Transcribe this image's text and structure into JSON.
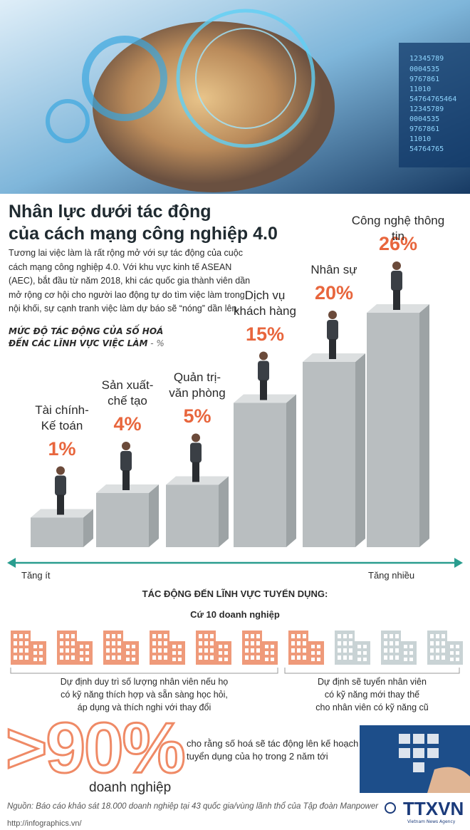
{
  "header": {
    "title": "Nhân lực dưới tác động\ncủa cách mạng công nghiệp 4.0",
    "intro": "Tương lai việc làm là rất rộng mở với sự tác động của cuộc cách mạng công nghiệp 4.0. Với khu vực kinh tế ASEAN (AEC), bắt đầu từ năm 2018, khi các quốc gia thành viên dần mở rộng cơ hội cho người lao động tự do tìm việc làm trong nội khối, sự cạnh tranh việc làm dự báo sẽ “nóng” dần lên."
  },
  "chart_data": {
    "type": "bar",
    "title": "MỨC ĐỘ TÁC ĐỘNG CỦA SỐ HOÁ\nĐẾN CÁC LĨNH VỰC VIỆC LÀM",
    "unit": " - %",
    "categories": [
      "Tài chính-\nKế toán",
      "Sản xuất-\nchế tạo",
      "Quản trị-\nvăn phòng",
      "Dịch vụ\nkhách hàng",
      "Nhân sự",
      "Công nghệ thông tin"
    ],
    "values": [
      1,
      4,
      5,
      15,
      20,
      26
    ],
    "value_labels": [
      "1%",
      "4%",
      "5%",
      "15%",
      "20%",
      "26%"
    ],
    "color": "#b9bec0",
    "axis_low": "Tăng ít",
    "axis_high": "Tăng nhiều"
  },
  "recruitment": {
    "heading": "TÁC ĐỘNG ĐẾN LĨNH VỰC TUYỂN DỤNG:",
    "subheading": "Cứ 10 doanh nghiệp",
    "kept_count": 7,
    "new_count": 3,
    "kept_color": "#ef9a7a",
    "new_color": "#c9d3d5",
    "kept_caption": "Dự định duy trì số lượng nhân viên nếu họ\ncó kỹ năng thích hợp và sẵn sàng học hỏi,\náp dụng và thích nghi với thay đổi",
    "new_caption": "Dự định sẽ tuyển nhân viên\ncó kỹ năng mới thay thế\ncho nhân viên có kỹ năng cũ",
    "big_stat": ">90%",
    "big_stat_unit": "doanh nghiệp",
    "big_stat_text": "cho rằng số hoá sẽ tác động lên kế hoạch\ntuyển dụng của họ trong 2 năm tới"
  },
  "footer": {
    "source": "Nguồn: Báo cáo khảo sát 18.000 doanh nghiệp tại 43 quốc gia/vùng lãnh thổ của Tập đoàn Manpower",
    "url": "http://infographics.vn/",
    "logo": "TTXVN",
    "logo_sub": "Vietnam News Agency"
  }
}
